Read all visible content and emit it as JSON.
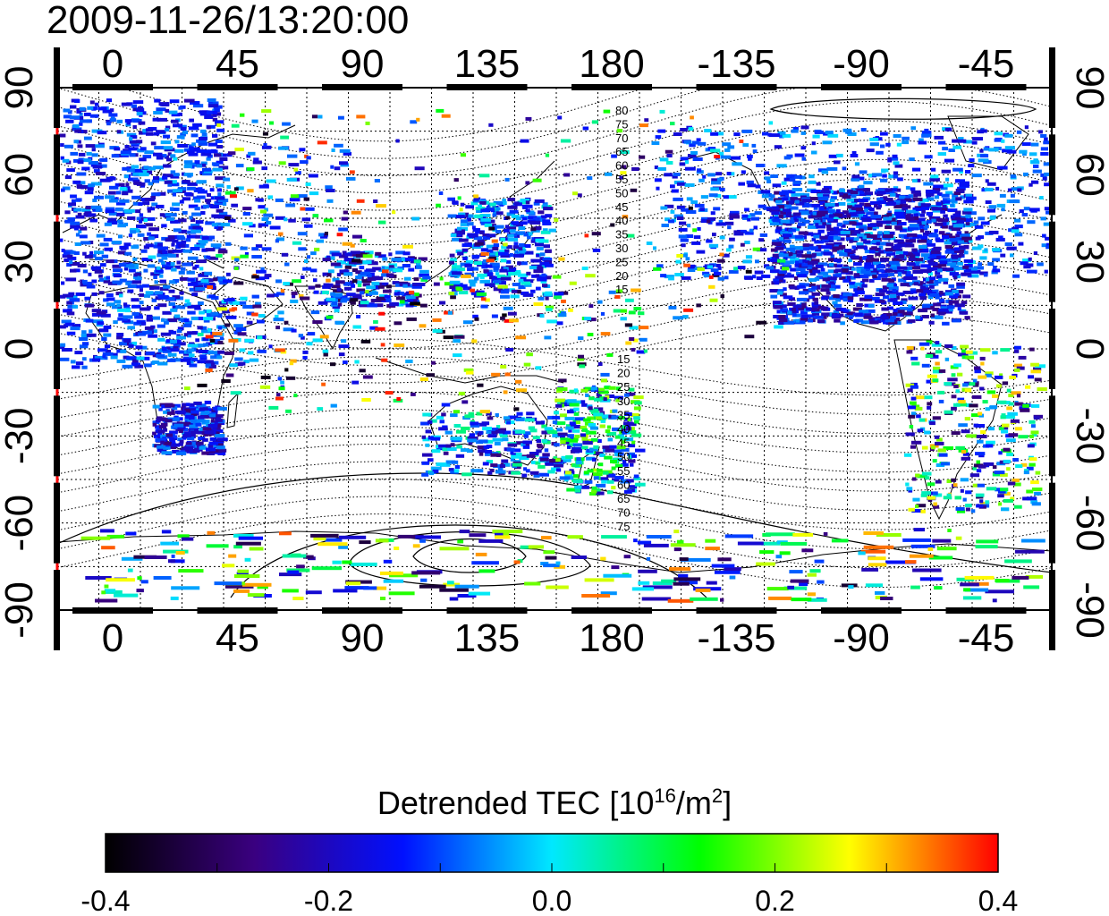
{
  "header": {
    "timestamp": "2009-11-26/13:20:00"
  },
  "map": {
    "x_ticks_top": [
      "0",
      "45",
      "90",
      "135",
      "180",
      "-135",
      "-90",
      "-45"
    ],
    "x_ticks_bottom": [
      "0",
      "45",
      "90",
      "135",
      "180",
      "-135",
      "-90",
      "-45"
    ],
    "y_ticks_left": [
      "90",
      "60",
      "30",
      "0",
      "-30",
      "-60",
      "-90"
    ],
    "y_ticks_right": [
      "90",
      "60",
      "30",
      "0",
      "-30",
      "-60",
      "-90"
    ],
    "north_contour_labels": [
      "80",
      "75",
      "70",
      "65",
      "60",
      "55",
      "50",
      "45",
      "40",
      "35",
      "30",
      "25",
      "20",
      "15"
    ],
    "south_contour_labels": [
      "15",
      "20",
      "25",
      "30",
      "35",
      "40",
      "45",
      "50",
      "55",
      "60",
      "65",
      "70",
      "75"
    ],
    "colors": {
      "line": "#000000",
      "marker_line": "#ff0000"
    }
  },
  "colorbar": {
    "label_prefix": "Detrended TEC  [10",
    "label_sup1": "16",
    "label_mid": "/m",
    "label_sup2": "2",
    "label_suffix": "]",
    "ticks": [
      "-0.4",
      "-0.2",
      "0.0",
      "0.2",
      "0.4"
    ],
    "range": [
      -0.4,
      0.4
    ],
    "stops": [
      "#000000",
      "#3a0080",
      "#0010ff",
      "#00e8ff",
      "#00ff00",
      "#ffff00",
      "#ff0000"
    ]
  }
}
